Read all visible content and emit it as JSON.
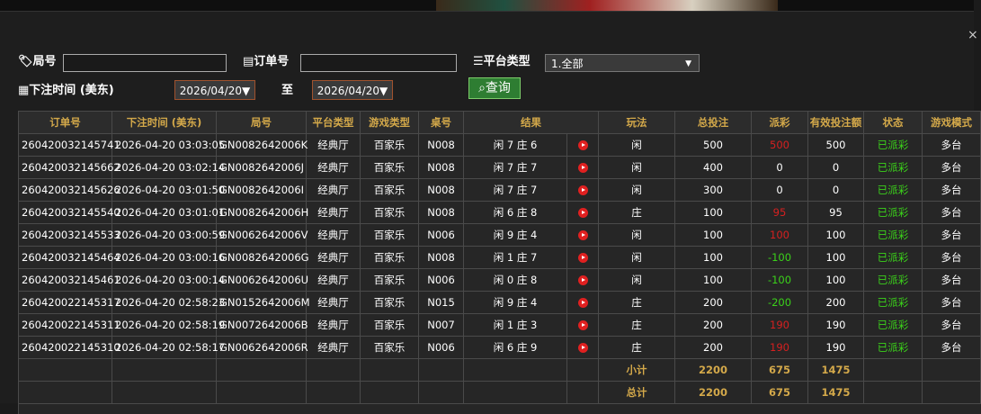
{
  "filters": {
    "round_label": "局号",
    "order_label": "订单号",
    "platform_label": "平台类型",
    "platform_value": "1.全部",
    "time_label": "下注时间 (美东)",
    "date_from": "2026/04/20▼",
    "to_label": "至",
    "date_to": "2026/04/20▼",
    "search_button": "查询"
  },
  "table": {
    "headers": [
      "订单号",
      "下注时间 (美东)",
      "局号",
      "平台类型",
      "游戏类型",
      "桌号",
      "结果",
      "玩法",
      "总投注",
      "派彩",
      "有效投注额",
      "状态",
      "游戏模式"
    ],
    "rows": [
      [
        "260420032145741",
        "2026-04-20 03:03:05",
        "GN0082642006K",
        "经典厅",
        "百家乐",
        "N008",
        "闲 7 庄 6",
        "闲",
        500,
        500,
        500,
        "已派彩",
        "多台"
      ],
      [
        "260420032145662",
        "2026-04-20 03:02:14",
        "GN0082642006J",
        "经典厅",
        "百家乐",
        "N008",
        "闲 7 庄 7",
        "闲",
        400,
        0,
        0,
        "已派彩",
        "多台"
      ],
      [
        "260420032145626",
        "2026-04-20 03:01:50",
        "GN0082642006I",
        "经典厅",
        "百家乐",
        "N008",
        "闲 7 庄 7",
        "闲",
        300,
        0,
        0,
        "已派彩",
        "多台"
      ],
      [
        "260420032145540",
        "2026-04-20 03:01:01",
        "GN0082642006H",
        "经典厅",
        "百家乐",
        "N008",
        "闲 6 庄 8",
        "庄",
        100,
        95,
        95,
        "已派彩",
        "多台"
      ],
      [
        "260420032145533",
        "2026-04-20 03:00:59",
        "GN0062642006V",
        "经典厅",
        "百家乐",
        "N006",
        "闲 9 庄 4",
        "闲",
        100,
        100,
        100,
        "已派彩",
        "多台"
      ],
      [
        "260420032145464",
        "2026-04-20 03:00:16",
        "GN0082642006G",
        "经典厅",
        "百家乐",
        "N008",
        "闲 1 庄 7",
        "闲",
        100,
        -100,
        100,
        "已派彩",
        "多台"
      ],
      [
        "260420032145461",
        "2026-04-20 03:00:14",
        "GN0062642006U",
        "经典厅",
        "百家乐",
        "N006",
        "闲 0 庄 8",
        "闲",
        100,
        -100,
        100,
        "已派彩",
        "多台"
      ],
      [
        "260420022145317",
        "2026-04-20 02:58:23",
        "GN0152642006M",
        "经典厅",
        "百家乐",
        "N015",
        "闲 9 庄 4",
        "庄",
        200,
        -200,
        200,
        "已派彩",
        "多台"
      ],
      [
        "260420022145311",
        "2026-04-20 02:58:19",
        "GN0072642006B",
        "经典厅",
        "百家乐",
        "N007",
        "闲 1 庄 3",
        "庄",
        200,
        190,
        190,
        "已派彩",
        "多台"
      ],
      [
        "260420022145310",
        "2026-04-20 02:58:17",
        "GN0062642006R",
        "经典厅",
        "百家乐",
        "N006",
        "闲 6 庄 9",
        "庄",
        200,
        190,
        190,
        "已派彩",
        "多台"
      ]
    ],
    "subtotal": {
      "label": "小计",
      "total_bet": 2200,
      "payout": 675,
      "valid_bet": 1475
    },
    "total": {
      "label": "总计",
      "total_bet": 2200,
      "payout": 675,
      "valid_bet": 1475
    }
  }
}
